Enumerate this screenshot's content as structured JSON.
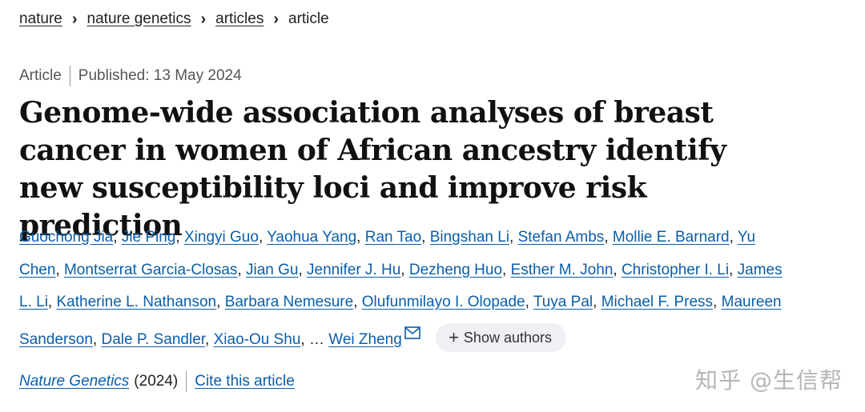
{
  "breadcrumb": {
    "items": [
      "nature",
      "nature genetics",
      "articles"
    ],
    "current": "article"
  },
  "meta": {
    "type": "Article",
    "published": "Published: 13 May 2024"
  },
  "title": "Genome-wide association analyses of breast cancer in women of African ancestry identify new susceptibility loci and improve risk prediction",
  "authors": {
    "list": [
      "Guochong Jia",
      "Jie Ping",
      "Xingyi Guo",
      "Yaohua Yang",
      "Ran Tao",
      "Bingshan Li",
      "Stefan Ambs",
      "Mollie E. Barnard",
      "Yu Chen",
      "Montserrat Garcia-Closas",
      "Jian Gu",
      "Jennifer J. Hu",
      "Dezheng Huo",
      "Esther M. John",
      "Christopher I. Li",
      "James L. Li",
      "Katherine L. Nathanson",
      "Barbara Nemesure",
      "Olufunmilayo I. Olopade",
      "Tuya Pal",
      "Michael F. Press",
      "Maureen Sanderson",
      "Dale P. Sandler",
      "Xiao-Ou Shu"
    ],
    "ellipsis": "…",
    "last": "Wei Zheng",
    "show_authors_label": "Show authors"
  },
  "citation": {
    "journal": "Nature Genetics",
    "year": "(2024)",
    "cite_label": "Cite this article"
  },
  "watermark": "知乎 @生信帮",
  "colors": {
    "link": "#0b5ea8",
    "text": "#222222",
    "pill": "#eef0f3"
  }
}
